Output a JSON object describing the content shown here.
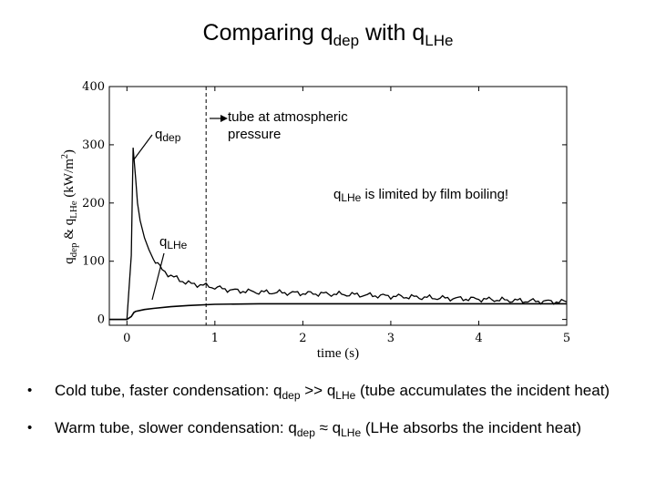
{
  "title": {
    "prefix": "Comparing q",
    "sub1": "dep",
    "middle": " with q",
    "sub2": "LHe"
  },
  "chart_data": {
    "type": "line",
    "xlabel": "time (s)",
    "ylabel": {
      "q1": "q",
      "sub1": "dep",
      "amp": " & q",
      "sub2": "LHe",
      "unit": " (kW/m",
      "sup": "2",
      "close": ")"
    },
    "xlim": [
      -0.2,
      5
    ],
    "ylim": [
      -10,
      400
    ],
    "xticks": [
      0,
      1,
      2,
      3,
      4,
      5
    ],
    "yticks": [
      0,
      100,
      200,
      300,
      400
    ],
    "grid": false,
    "vline_x": 0.9,
    "series": [
      {
        "name": "q_dep",
        "x": [
          -0.2,
          0.0,
          0.05,
          0.07,
          0.1,
          0.12,
          0.15,
          0.2,
          0.25,
          0.3,
          0.35,
          0.4,
          0.5,
          0.6,
          0.7,
          0.8,
          0.9,
          1.0,
          1.2,
          1.5,
          2.0,
          2.5,
          3.0,
          3.5,
          4.0,
          4.5,
          5.0
        ],
        "y": [
          0,
          0,
          110,
          295,
          240,
          200,
          170,
          140,
          120,
          105,
          95,
          85,
          75,
          68,
          62,
          60,
          58,
          55,
          50,
          47,
          45,
          43,
          40,
          37,
          35,
          32,
          30
        ]
      },
      {
        "name": "q_LHe",
        "x": [
          -0.2,
          0.0,
          0.05,
          0.08,
          0.1,
          0.2,
          0.3,
          0.5,
          0.7,
          1.0,
          1.5,
          2.0,
          3.0,
          4.0,
          5.0
        ],
        "y": [
          0,
          0,
          5,
          12,
          14,
          17,
          19,
          22,
          24,
          26,
          27,
          27,
          27,
          27,
          27
        ]
      }
    ],
    "annotations": [
      {
        "text": "q",
        "sub": "dep"
      },
      {
        "text": "tube at atmospheric"
      },
      {
        "text": "pressure"
      },
      {
        "text": "q",
        "sub": "LHe",
        "rest": " is limited by film boiling!"
      },
      {
        "text": "q",
        "sub": "LHe"
      }
    ]
  },
  "bullets": [
    {
      "a": "Cold tube, faster condensation: q",
      "s1": "dep",
      "b": " >> q",
      "s2": "LHe",
      "c": " (tube accumulates the incident heat)"
    },
    {
      "a": "Warm tube, slower condensation: q",
      "s1": "dep",
      "b": " ≈ q",
      "s2": "LHe",
      "c": " (LHe absorbs the incident heat)"
    }
  ]
}
